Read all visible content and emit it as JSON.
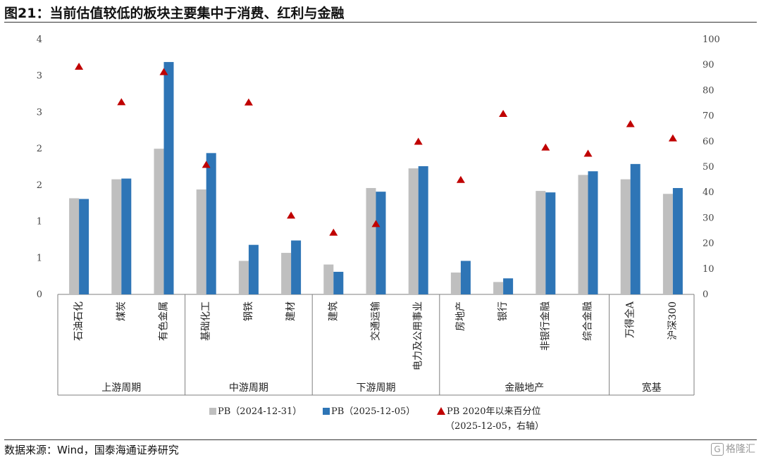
{
  "title": "图21：当前估值较低的板块主要集中于消费、红利与金融",
  "source": "数据来源：Wind，国泰海通证券研究",
  "watermark": "格隆汇",
  "colors": {
    "pb_2024": "#bfbfbf",
    "pb_2025": "#2e75b6",
    "percentile": "#c00000",
    "axis": "#7f7f7f"
  },
  "chart_data": {
    "type": "bar",
    "categories": [
      "石油石化",
      "煤炭",
      "有色金属",
      "基础化工",
      "钢铁",
      "建材",
      "建筑",
      "交通运输",
      "电力及公用事业",
      "房地产",
      "银行",
      "非银行金融",
      "综合金融",
      "万得全A",
      "沪深300"
    ],
    "groups": [
      {
        "label": "上游周期",
        "count": 3
      },
      {
        "label": "中游周期",
        "count": 3
      },
      {
        "label": "下游周期",
        "count": 3
      },
      {
        "label": "金融地产",
        "count": 4
      },
      {
        "label": "宽基",
        "count": 2
      }
    ],
    "left_axis": {
      "ticks": [
        "0",
        "1",
        "1",
        "2",
        "2",
        "3",
        "3",
        "4"
      ],
      "ylim": [
        0,
        3.5
      ]
    },
    "right_axis": {
      "ticks": [
        "0",
        "10",
        "20",
        "30",
        "40",
        "50",
        "60",
        "70",
        "80",
        "90",
        "100"
      ],
      "ylim": [
        0,
        100
      ]
    },
    "series": [
      {
        "name": "PB（2024-12-31）",
        "axis": "left",
        "kind": "bar",
        "values": [
          1.32,
          1.58,
          2.0,
          1.44,
          0.46,
          0.57,
          0.41,
          1.46,
          1.73,
          0.3,
          0.17,
          1.42,
          1.64,
          1.58,
          1.38
        ]
      },
      {
        "name": "PB（2025-12-05）",
        "axis": "left",
        "kind": "bar",
        "values": [
          1.31,
          1.59,
          3.19,
          1.94,
          0.68,
          0.74,
          0.31,
          1.41,
          1.76,
          0.46,
          0.22,
          1.4,
          1.69,
          1.79,
          1.46
        ]
      },
      {
        "name": "PB 2020年以来百分位",
        "name_line2": "（2025-12-05，右轴）",
        "axis": "right",
        "kind": "marker",
        "values": [
          89.5,
          75.6,
          87.4,
          51.0,
          75.5,
          31.1,
          24.4,
          27.8,
          60.1,
          45.1,
          71.0,
          57.8,
          55.4,
          67.0,
          61.4
        ]
      }
    ]
  }
}
